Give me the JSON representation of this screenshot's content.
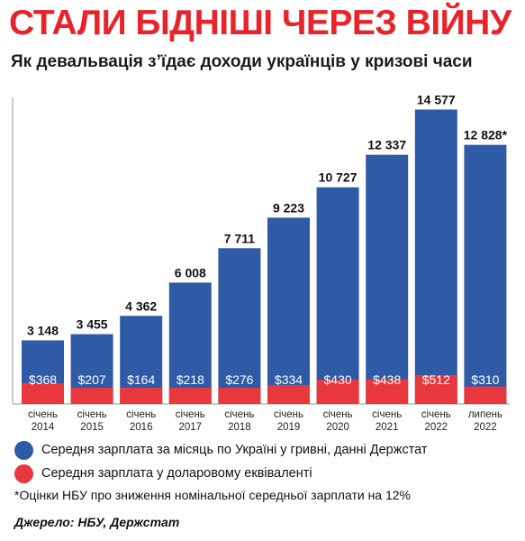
{
  "header": {
    "title": "СТАЛИ БІДНІШІ ЧЕРЕЗ ВІЙНУ",
    "subtitle": "Як девальвація з’їдає доходи українців у кризові часи"
  },
  "colors": {
    "title": "#e8232a",
    "blue": "#2f5aa5",
    "red": "#e8383e",
    "axis": "#9a9a9a"
  },
  "chart_data": {
    "type": "bar",
    "categories": [
      [
        "січень",
        "2014"
      ],
      [
        "січень",
        "2015"
      ],
      [
        "січень",
        "2016"
      ],
      [
        "січень",
        "2017"
      ],
      [
        "січень",
        "2018"
      ],
      [
        "січень",
        "2019"
      ],
      [
        "січень",
        "2020"
      ],
      [
        "січень",
        "2021"
      ],
      [
        "січень",
        "2022"
      ],
      [
        "липень",
        "2022"
      ]
    ],
    "series": [
      {
        "name": "Середня зарплата за місяць по Україні у гривні, данні Держстат",
        "color": "#2f5aa5",
        "values": [
          3148,
          3455,
          4362,
          6008,
          7711,
          9223,
          10727,
          12337,
          14577,
          12828
        ],
        "labels": [
          "3 148",
          "3 455",
          "4 362",
          "6 008",
          "7 711",
          "9 223",
          "10 727",
          "12 337",
          "14 577",
          "12 828*"
        ]
      },
      {
        "name": "Середня зарплата у доларовому еквіваленті",
        "color": "#e8383e",
        "values": [
          368,
          207,
          164,
          218,
          276,
          334,
          430,
          438,
          512,
          310
        ],
        "labels": [
          "$368",
          "$207",
          "$164",
          "$218",
          "$276",
          "$334",
          "$430",
          "$438",
          "$512",
          "$310"
        ]
      }
    ],
    "ylim": [
      0,
      15000
    ],
    "grid": false,
    "legend_position": "bottom"
  },
  "legend": {
    "items": [
      {
        "label": "Середня зарплата за місяць по Україні у гривні, данні Держстат",
        "color": "#2f5aa5"
      },
      {
        "label": "Середня зарплата у доларовому еквіваленті",
        "color": "#e8383e"
      }
    ]
  },
  "footnote": "*Оцінки НБУ про зниження номінальної середньої зарплати на 12%",
  "source": "Джерело: НБУ, Держстат"
}
